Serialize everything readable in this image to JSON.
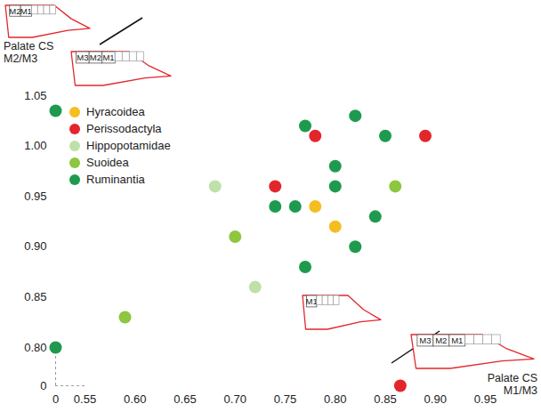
{
  "chart_data": {
    "type": "scatter",
    "x_label": "Palate CS M1/M3",
    "y_label": "Palate CS M2/M3",
    "xlim": [
      0,
      0.95
    ],
    "xticks": [
      0,
      0.55,
      {
        "value": 0.6,
        "label": "0.60"
      },
      0.65,
      {
        "value": 0.7,
        "label": "0.70"
      },
      0.75,
      {
        "value": 0.8,
        "label": "0.80"
      },
      0.85,
      {
        "value": 0.9,
        "label": "0.90"
      },
      0.95
    ],
    "ylim": [
      0,
      1.05
    ],
    "yticks": [
      0,
      {
        "value": 0.8,
        "label": "0.80"
      },
      0.85,
      {
        "value": 0.9,
        "label": "0.90"
      },
      0.95,
      {
        "value": 1.0,
        "label": "1.00"
      },
      1.05
    ],
    "grid": false,
    "legend": "top-left",
    "marker": "circle",
    "series": [
      {
        "name": "Hyracoidea",
        "color": "#f5bd1f",
        "values": [
          [
            0.78,
            0.94
          ],
          [
            0.8,
            0.92
          ]
        ]
      },
      {
        "name": "Perissodactyla",
        "color": "#e3262b",
        "values": [
          [
            0.78,
            1.01
          ],
          [
            0.89,
            1.01
          ],
          [
            0.74,
            0.96
          ],
          [
            0.865,
            0
          ]
        ]
      },
      {
        "name": "Hippopotamidae",
        "color": "#bfe0a8",
        "values": [
          [
            0.68,
            0.96
          ],
          [
            0.72,
            0.86
          ]
        ]
      },
      {
        "name": "Suoidea",
        "color": "#8dc63f",
        "values": [
          [
            0.86,
            0.96
          ],
          [
            0.7,
            0.91
          ],
          [
            0.59,
            0.83
          ]
        ]
      },
      {
        "name": "Ruminantia",
        "color": "#1e9a4e",
        "values": [
          [
            0,
            1.035
          ],
          [
            0,
            0.8
          ],
          [
            0.77,
            1.02
          ],
          [
            0.82,
            1.03
          ],
          [
            0.85,
            1.01
          ],
          [
            0.8,
            0.98
          ],
          [
            0.8,
            0.96
          ],
          [
            0.74,
            0.94
          ],
          [
            0.76,
            0.94
          ],
          [
            0.84,
            0.93
          ],
          [
            0.82,
            0.9
          ],
          [
            0.77,
            0.88
          ]
        ]
      }
    ],
    "annotations": [
      [
        "M2",
        "M1"
      ],
      [
        "M3",
        "M2",
        "M1"
      ],
      [
        "M1"
      ],
      [
        "M3",
        "M2",
        "M1"
      ]
    ]
  }
}
